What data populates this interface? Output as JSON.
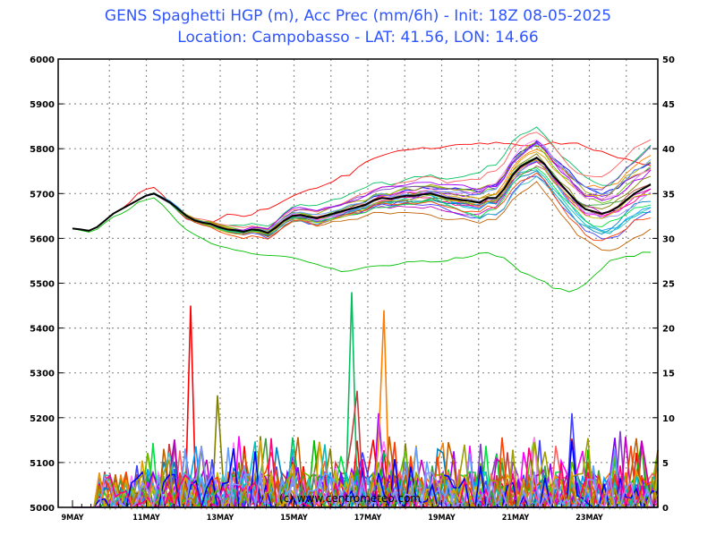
{
  "chart_data": {
    "type": "line",
    "title": "GENS Spaghetti HGP (m), Acc Prec (mm/6h)   -   Init: 18Z 08-05-2025",
    "subtitle": "Location: Campobasso   -   LAT: 41.56, LON: 14.66",
    "x_tick_labels": [
      "9MAY",
      "11MAY",
      "13MAY",
      "15MAY",
      "17MAY",
      "19MAY",
      "21MAY",
      "23MAY"
    ],
    "left_axis": {
      "ylim": [
        5000,
        6000
      ],
      "ticks": [
        5000,
        5100,
        5200,
        5300,
        5400,
        5500,
        5600,
        5700,
        5800,
        5900,
        6000
      ]
    },
    "right_axis": {
      "ylim": [
        0,
        50
      ],
      "ticks": [
        0,
        5,
        10,
        15,
        20,
        25,
        30,
        35,
        40,
        45,
        50
      ]
    },
    "grid": true,
    "hgp_control": {
      "name": "",
      "color": "#000000",
      "values": [
        5622,
        5620,
        5617,
        5625,
        5640,
        5655,
        5665,
        5675,
        5685,
        5695,
        5700,
        5690,
        5680,
        5665,
        5650,
        5640,
        5635,
        5632,
        5625,
        5620,
        5618,
        5615,
        5620,
        5618,
        5612,
        5625,
        5640,
        5650,
        5652,
        5648,
        5645,
        5650,
        5655,
        5660,
        5665,
        5670,
        5675,
        5685,
        5690,
        5688,
        5692,
        5695,
        5695,
        5698,
        5700,
        5695,
        5690,
        5688,
        5685,
        5683,
        5680,
        5690,
        5690,
        5710,
        5740,
        5760,
        5770,
        5780,
        5765,
        5740,
        5720,
        5700,
        5680,
        5665,
        5660,
        5655,
        5660,
        5670,
        5685,
        5700,
        5710,
        5720
      ]
    },
    "hgp_members_spread": [
      [
        5622,
        5620,
        5618,
        5625,
        5640,
        5655,
        5665,
        5680,
        5700,
        5710,
        5715,
        5700,
        5680,
        5660,
        5645,
        5640,
        5640,
        5640,
        5650,
        5660,
        5660,
        5655,
        5660,
        5670,
        5670,
        5680,
        5690,
        5700,
        5710,
        5715,
        5720,
        5725,
        5730,
        5740,
        5745,
        5760,
        5770,
        5780,
        5790,
        5795,
        5800,
        5805,
        5810,
        5810,
        5810,
        5812,
        5815,
        5818,
        5820,
        5822,
        5825,
        5825,
        5828,
        5830,
        5830,
        5832,
        5832,
        5835,
        5838,
        5840,
        5838,
        5840,
        5842,
        5840,
        5838,
        5836,
        5835,
        5834,
        5834,
        5833,
        5832,
        5830
      ],
      [
        5622,
        5618,
        5614,
        5620,
        5635,
        5648,
        5655,
        5665,
        5680,
        5685,
        5690,
        5675,
        5655,
        5635,
        5620,
        5610,
        5600,
        5590,
        5585,
        5582,
        5578,
        5575,
        5572,
        5570,
        5568,
        5570,
        5572,
        5570,
        5565,
        5560,
        5555,
        5552,
        5548,
        5545,
        5545,
        5548,
        5550,
        5552,
        5555,
        5558,
        5560,
        5562,
        5565,
        5568,
        5570,
        5575,
        5580,
        5585,
        5590,
        5595,
        5600,
        5600,
        5595,
        5590,
        5580,
        5570,
        5560,
        5550,
        5540,
        5530,
        5525,
        5520,
        5530,
        5545,
        5560,
        5575,
        5590,
        5595,
        5600,
        5595,
        5600,
        5605
      ]
    ],
    "precip_peaks": [
      {
        "date_tick": "12MAY-13MAY",
        "value": 22.5
      },
      {
        "date_tick": "13MAY",
        "value": 12.5
      },
      {
        "date_tick": "16MAY-17MAY",
        "value": 24
      },
      {
        "date_tick": "17MAY",
        "value": 13
      },
      {
        "date_tick": "17MAY-18MAY",
        "value": 22
      },
      {
        "date_tick": "17MAY-18MAY",
        "value": 10.5
      },
      {
        "date_tick": "23MAY",
        "value": 10.5
      },
      {
        "date_tick": "24MAY",
        "value": 8.5
      }
    ],
    "watermark": "(c) www.centrometeo.com"
  }
}
